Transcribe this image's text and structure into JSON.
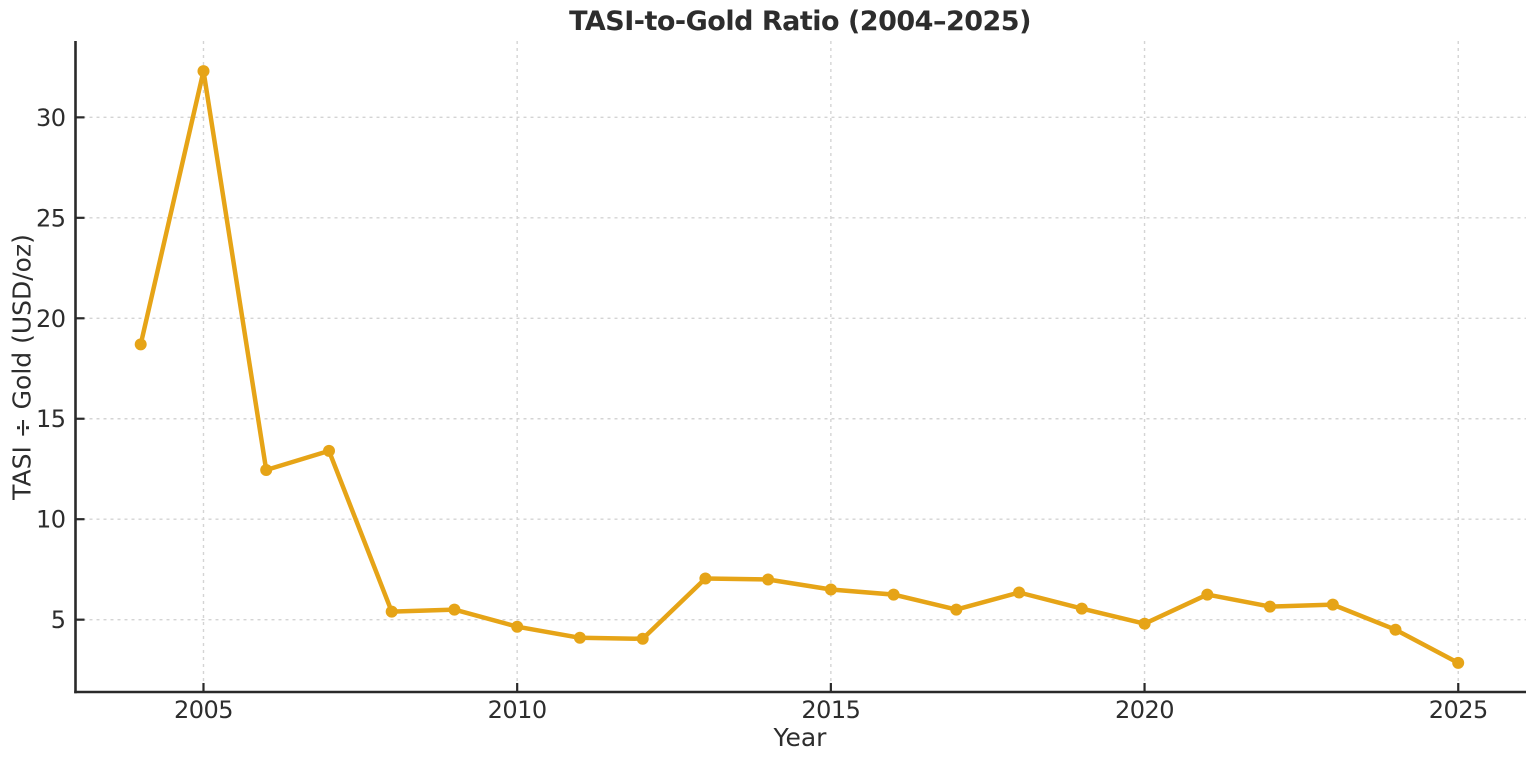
{
  "chart_data": {
    "type": "line",
    "title": "TASI-to-Gold Ratio (2004–2025)",
    "xlabel": "Year",
    "ylabel": "TASI ÷ Gold (USD/oz)",
    "x": [
      2004,
      2005,
      2006,
      2007,
      2008,
      2009,
      2010,
      2011,
      2012,
      2013,
      2014,
      2015,
      2016,
      2017,
      2018,
      2019,
      2020,
      2021,
      2022,
      2023,
      2024,
      2025
    ],
    "values": [
      18.7,
      32.3,
      12.45,
      13.4,
      5.4,
      5.5,
      4.65,
      4.1,
      4.05,
      7.05,
      7.0,
      6.5,
      6.25,
      5.5,
      6.35,
      5.55,
      4.8,
      6.25,
      5.65,
      5.75,
      4.5,
      2.85
    ],
    "x_tick_values": [
      2005,
      2010,
      2015,
      2020,
      2025
    ],
    "x_tick_labels": [
      "2005",
      "2010",
      "2015",
      "2020",
      "2025"
    ],
    "y_tick_values": [
      5,
      10,
      15,
      20,
      25,
      30
    ],
    "y_tick_labels": [
      "5",
      "10",
      "15",
      "20",
      "25",
      "30"
    ],
    "xlim": [
      2002.96,
      2026.08
    ],
    "ylim": [
      1.4,
      33.8
    ],
    "grid": true,
    "grid_style": "dashed",
    "legend": "none",
    "marker": "circle",
    "colors": {
      "line": "#E6A417",
      "grid": "#d4d4d4",
      "spine": "#2a2a2a",
      "text": "#2d2d2d"
    }
  }
}
